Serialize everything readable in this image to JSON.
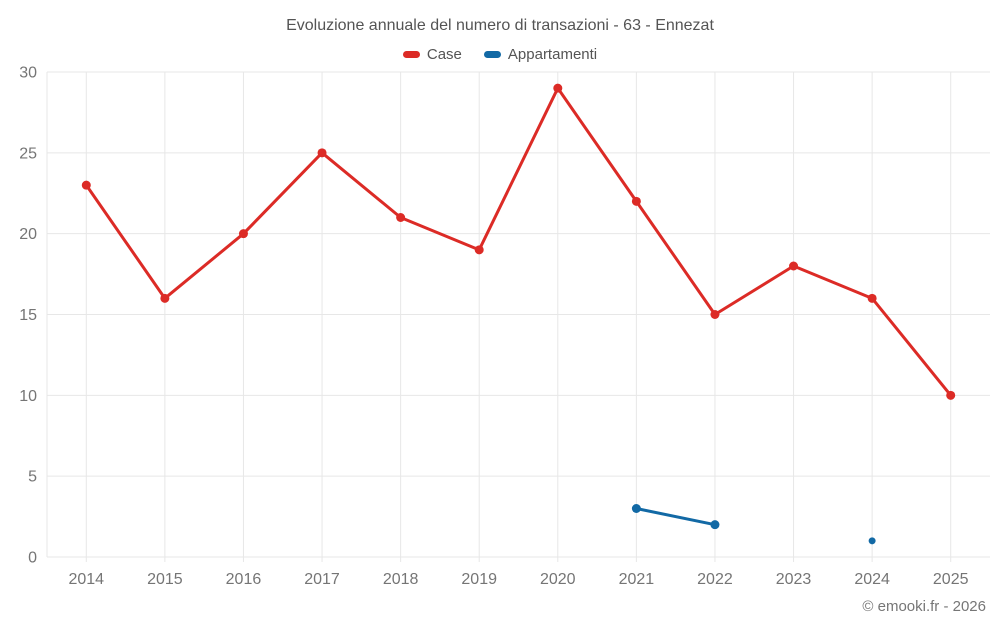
{
  "title": "Evoluzione annuale del numero di transazioni - 63 - Ennezat",
  "footer": "© emooki.fr - 2026",
  "colors": {
    "title_text": "#545454",
    "axis_text": "#757575",
    "gridline": "#e7e7e7",
    "background": "#ffffff"
  },
  "chart_data": {
    "type": "line",
    "title": "Evoluzione annuale del numero di transazioni - 63 - Ennezat",
    "categories": [
      "2014",
      "2015",
      "2016",
      "2017",
      "2018",
      "2019",
      "2020",
      "2021",
      "2022",
      "2023",
      "2024",
      "2025"
    ],
    "series": [
      {
        "name": "Case",
        "color": "#dc2b26",
        "values": [
          23,
          16,
          20,
          25,
          21,
          19,
          29,
          22,
          15,
          18,
          16,
          10
        ]
      },
      {
        "name": "Appartamenti",
        "color": "#1269a5",
        "values": [
          null,
          null,
          null,
          null,
          null,
          null,
          null,
          3,
          2,
          null,
          1,
          null
        ]
      }
    ],
    "xlabel": "",
    "ylabel": "",
    "ylim": [
      0,
      30
    ],
    "yticks": [
      0,
      5,
      10,
      15,
      20,
      25,
      30
    ],
    "grid": true,
    "legend_position": "top"
  }
}
